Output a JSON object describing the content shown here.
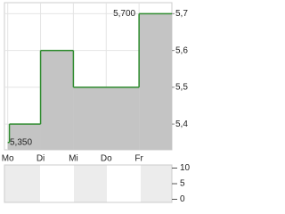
{
  "chart_data": [
    {
      "type": "step-area",
      "x": [
        0,
        0.05,
        1.0,
        2.0,
        4.0
      ],
      "values": [
        5.35,
        5.4,
        5.6,
        5.5,
        5.7
      ],
      "color": "#2e8b2e",
      "fill": "#c4c4c4",
      "xlim": [
        -0.1,
        5.0
      ],
      "xticks": [
        {
          "value": 0,
          "label": "Mo"
        },
        {
          "value": 1,
          "label": "Di"
        },
        {
          "value": 2,
          "label": "Mi"
        },
        {
          "value": 3,
          "label": "Do"
        },
        {
          "value": 4,
          "label": "Fr"
        }
      ],
      "ylim": [
        5.33,
        5.73
      ],
      "yticks": [
        {
          "value": 5.4,
          "label": "5,4"
        },
        {
          "value": 5.5,
          "label": "5,5"
        },
        {
          "value": 5.6,
          "label": "5,6"
        },
        {
          "value": 5.7,
          "label": "5,7"
        }
      ],
      "annotations": [
        "5,350",
        "5,700"
      ],
      "grid": true
    },
    {
      "type": "volume",
      "xlim": [
        -0.1,
        5.0
      ],
      "ylim": [
        -1,
        11
      ],
      "yticks": [
        0,
        5,
        10
      ]
    }
  ]
}
